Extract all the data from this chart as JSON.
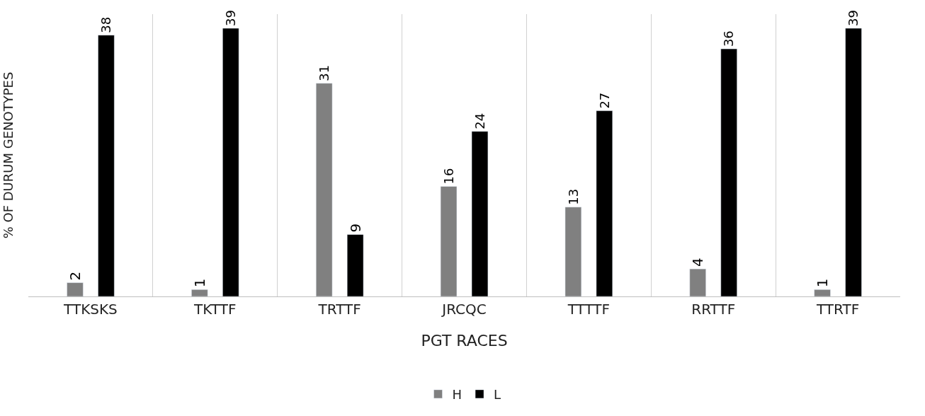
{
  "chart_data": {
    "type": "bar",
    "xlabel": "PGT RACES",
    "ylabel": "% OF DURUM GENOTYPES",
    "categories": [
      "TTKSKS",
      "TKTTF",
      "TRTTF",
      "JRCQC",
      "TTTTF",
      "RRTTF",
      "TTRTF"
    ],
    "series": [
      {
        "name": "H",
        "color": "#808080",
        "values": [
          2,
          1,
          31,
          16,
          13,
          4,
          1
        ]
      },
      {
        "name": "L",
        "color": "#000000",
        "values": [
          38,
          39,
          9,
          24,
          27,
          36,
          39
        ]
      }
    ],
    "data_labels": true,
    "grid": "x",
    "legend": "bottom",
    "tick_labels": "x"
  }
}
